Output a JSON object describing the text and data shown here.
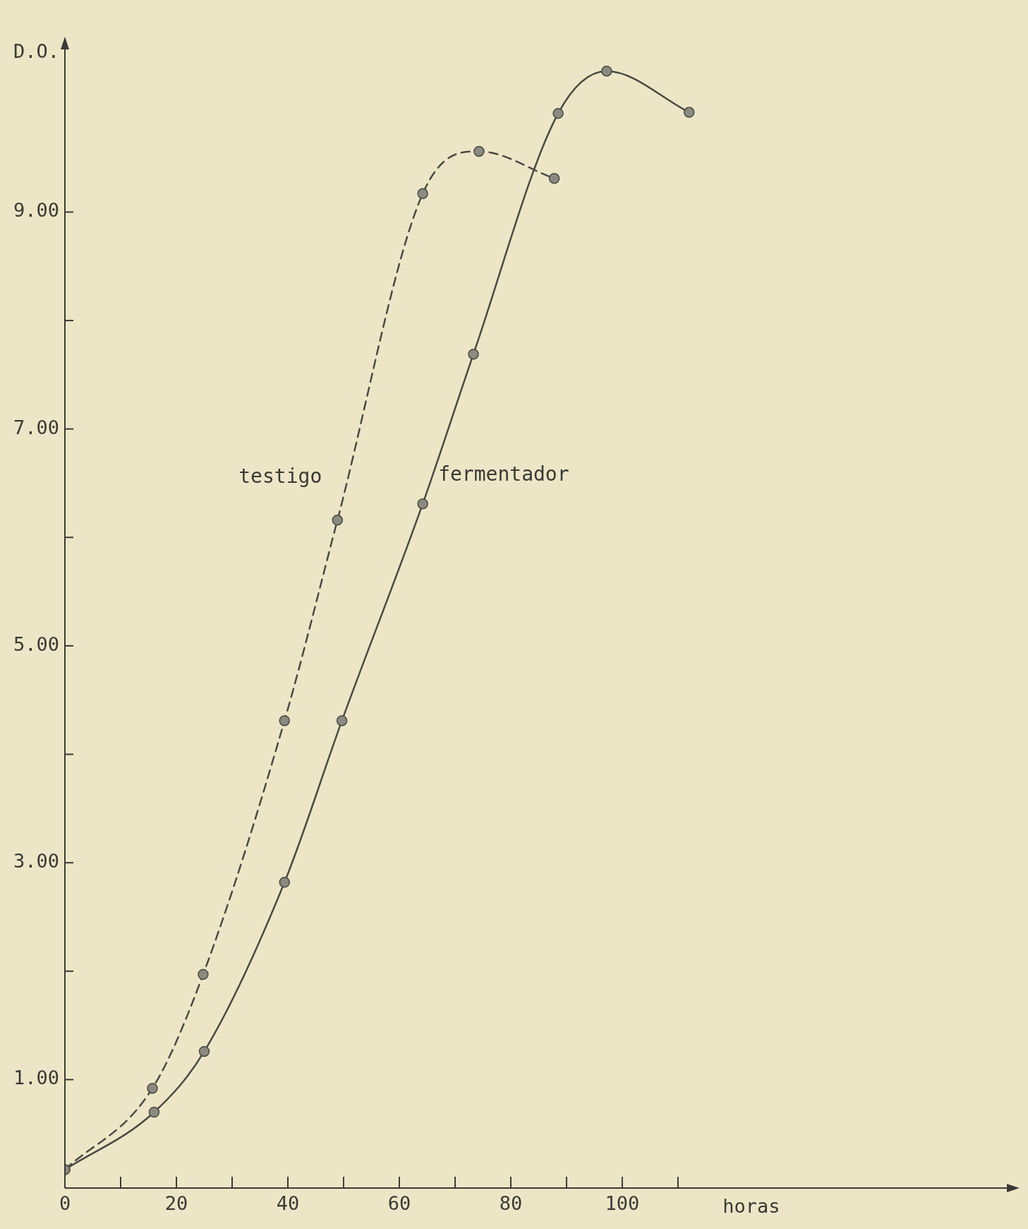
{
  "chart_data": {
    "type": "line",
    "xlabel": "horas",
    "ylabel": "D.O.",
    "xlim": [
      0,
      169
    ],
    "ylim": [
      0,
      10.5
    ],
    "xticks": [
      0,
      {
        "value": 10,
        "label": null
      },
      20,
      {
        "value": 30,
        "label": null
      },
      40,
      {
        "value": 50,
        "label": null
      },
      60,
      {
        "value": 70,
        "label": null
      },
      80,
      {
        "value": 90,
        "label": null
      },
      100,
      {
        "value": 110,
        "label": null
      }
    ],
    "yticks": [
      {
        "value": 1,
        "label": "1.00"
      },
      {
        "value": 2,
        "label": null
      },
      {
        "value": 3,
        "label": "3.00"
      },
      {
        "value": 4,
        "label": null
      },
      {
        "value": 5,
        "label": "5.00"
      },
      {
        "value": 6,
        "label": null
      },
      {
        "value": 7,
        "label": "7.00"
      },
      {
        "value": 8,
        "label": null
      },
      {
        "value": 9,
        "label": "9.00"
      }
    ],
    "grid": false,
    "legend": false,
    "marker": "circle",
    "series": [
      {
        "name": "testigo",
        "color": "#4a4a44",
        "line_style": "dashed",
        "x": [
          0,
          15.7,
          24.8,
          39.4,
          48.9,
          64.2,
          74.3,
          87.8
        ],
        "values": [
          0.17,
          0.92,
          1.97,
          4.31,
          6.16,
          9.17,
          9.56,
          9.31
        ]
      },
      {
        "name": "fermentador",
        "color": "#4a4a44",
        "line_style": "solid",
        "x": [
          0,
          16,
          25,
          39.4,
          49.7,
          64.2,
          73.3,
          88.5,
          97.2,
          112
        ],
        "values": [
          0.17,
          0.7,
          1.26,
          2.82,
          4.31,
          6.31,
          7.69,
          9.91,
          10.3,
          9.92
        ]
      }
    ]
  }
}
